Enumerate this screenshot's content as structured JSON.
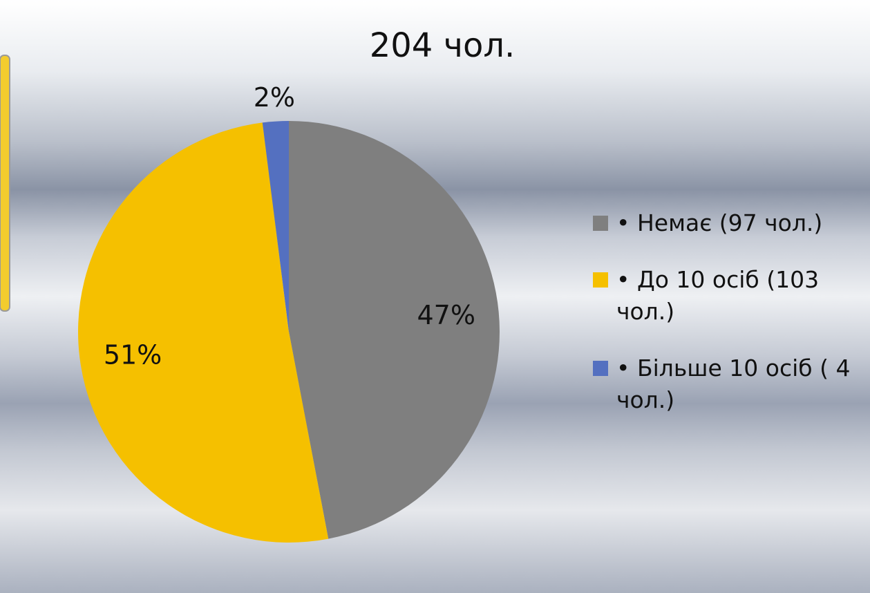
{
  "chart_data": {
    "type": "pie",
    "title": "204 чол.",
    "categories": [
      "• Немає (97 чол.)",
      "• До 10 осіб (103 чол.)",
      "• Більше 10 осіб ( 4 чол.)"
    ],
    "values": [
      47,
      51,
      2
    ],
    "value_labels": [
      "47%",
      "51%",
      "2%"
    ],
    "colors": [
      "#7f7f7f",
      "#f5c000",
      "#5470c0"
    ],
    "legend": "right"
  }
}
